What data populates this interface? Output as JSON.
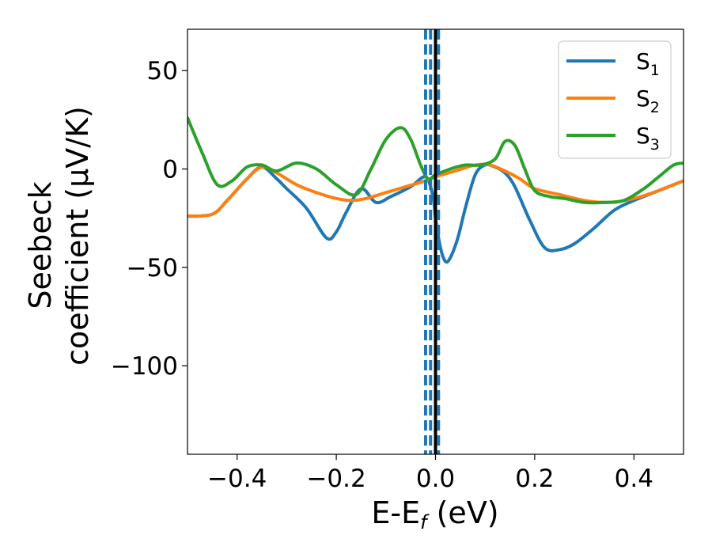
{
  "chart_data": {
    "type": "line",
    "xlabel": "E-E",
    "xlabel_sub": "f",
    "xlabel_unit": " (eV)",
    "ylabel_line1": "Seebeck",
    "ylabel_line2": "coefficient  (μV/K)",
    "xlim": [
      -0.5,
      0.5
    ],
    "ylim": [
      -145,
      71
    ],
    "xticks": [
      -0.4,
      -0.2,
      0.0,
      0.2,
      0.4
    ],
    "xtick_labels": [
      "−0.4",
      "−0.2",
      "0.0",
      "0.2",
      "0.4"
    ],
    "yticks": [
      50,
      0,
      -50,
      -100
    ],
    "ytick_labels": [
      "50",
      "0",
      "−50",
      "−100"
    ],
    "legend_position": "top-right",
    "grid": false,
    "series": [
      {
        "name": "S",
        "name_sub": "1",
        "color": "#1f77b4",
        "x": [
          -0.5,
          -0.45,
          -0.42,
          -0.38,
          -0.35,
          -0.32,
          -0.3,
          -0.26,
          -0.22,
          -0.2,
          -0.18,
          -0.15,
          -0.12,
          -0.09,
          -0.05,
          -0.02,
          -0.005,
          0.0,
          0.01,
          0.02,
          0.03,
          0.045,
          0.06,
          0.08,
          0.1,
          0.12,
          0.14,
          0.16,
          0.19,
          0.22,
          0.25,
          0.28,
          0.32,
          0.36,
          0.4,
          0.45,
          0.5
        ],
        "y": [
          -24,
          -23,
          -16,
          -5,
          1,
          -5,
          -10,
          -20,
          -35,
          -32,
          -22,
          -10,
          -17,
          -14,
          -9,
          -4,
          -14,
          -25,
          -40,
          -47,
          -45,
          -35,
          -20,
          -3,
          2,
          1,
          -2,
          -9,
          -26,
          -40,
          -41,
          -38,
          -30,
          -21,
          -16,
          -11,
          -6
        ]
      },
      {
        "name": "S",
        "name_sub": "2",
        "color": "#ff7f0e",
        "x": [
          -0.5,
          -0.45,
          -0.42,
          -0.38,
          -0.35,
          -0.32,
          -0.28,
          -0.24,
          -0.2,
          -0.17,
          -0.14,
          -0.1,
          -0.06,
          -0.02,
          0.0,
          0.04,
          0.08,
          0.11,
          0.14,
          0.17,
          0.2,
          0.25,
          0.3,
          0.35,
          0.4,
          0.45,
          0.5
        ],
        "y": [
          -24,
          -23,
          -16,
          -5,
          1,
          -2,
          -8,
          -12,
          -15,
          -16,
          -15,
          -12,
          -9,
          -6,
          -4,
          -1,
          2,
          2,
          -1,
          -5,
          -10,
          -13,
          -16,
          -17,
          -15,
          -11,
          -6
        ]
      },
      {
        "name": "S",
        "name_sub": "3",
        "color": "#2ca02c",
        "x": [
          -0.5,
          -0.47,
          -0.44,
          -0.41,
          -0.38,
          -0.35,
          -0.32,
          -0.28,
          -0.24,
          -0.2,
          -0.16,
          -0.13,
          -0.1,
          -0.07,
          -0.05,
          -0.03,
          -0.015,
          0.0,
          0.03,
          0.06,
          0.09,
          0.12,
          0.14,
          0.16,
          0.18,
          0.2,
          0.23,
          0.26,
          0.3,
          0.34,
          0.38,
          0.42,
          0.45,
          0.48,
          0.5
        ],
        "y": [
          26,
          8,
          -8,
          -6,
          1,
          2,
          -1,
          3,
          0,
          -8,
          -13,
          0,
          15,
          21,
          15,
          2,
          -5,
          -3,
          0,
          2,
          2,
          5,
          14,
          12,
          0,
          -11,
          -14,
          -15,
          -17,
          -17,
          -16,
          -10,
          -4,
          2,
          3
        ]
      }
    ],
    "vlines": [
      {
        "x": -0.02,
        "style": "dashed",
        "color": "#1f77b4"
      },
      {
        "x": -0.01,
        "style": "dashed",
        "color": "#1f77b4"
      },
      {
        "x": 0.0,
        "style": "solid",
        "color": "#000000"
      },
      {
        "x": 0.006,
        "style": "dashed",
        "color": "#1f77b4"
      }
    ]
  }
}
